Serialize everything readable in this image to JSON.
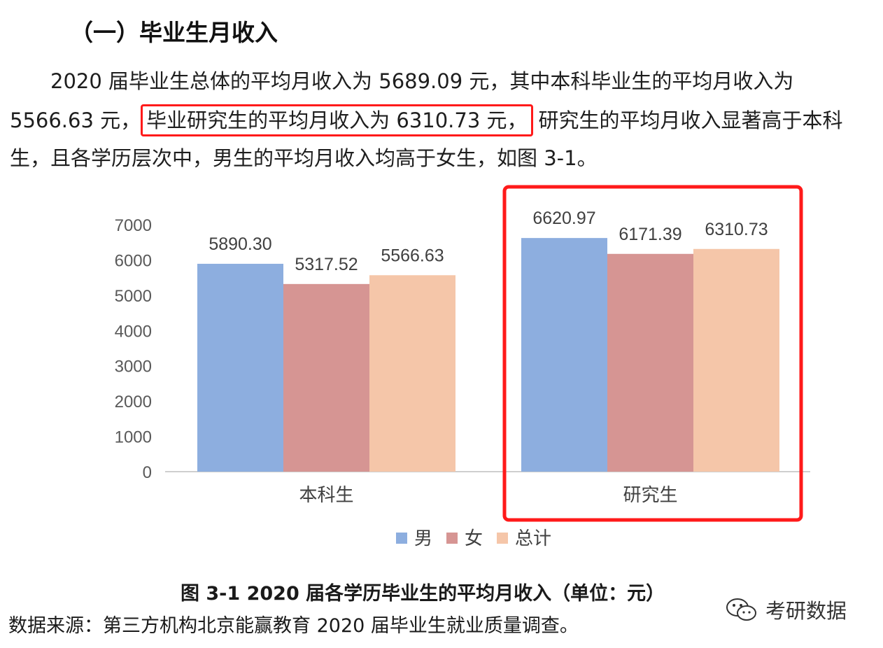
{
  "heading": "（一）毕业生月收入",
  "paragraph": {
    "line1": "2020 届毕业生总体的平均月收入为 5689.09 元，其中本科毕业生的平均月收入为",
    "line2_start": "5566.63 元，",
    "line2_highlight": "毕业研究生的平均月收入为 6310.73 元，",
    "line2_end": "研究生的平均月收入显著高于本科",
    "line3": "生，且各学历层次中，男生的平均月收入均高于女生，如图 3-1。"
  },
  "colors": {
    "male": "#8DAEDF",
    "female": "#D69593",
    "total": "#F5C6A9",
    "highlight": "#FF1A1A",
    "axis": "#BFBFBF"
  },
  "chart_data": {
    "type": "bar",
    "categories": [
      "本科生",
      "研究生"
    ],
    "series": [
      {
        "name": "男",
        "values": [
          5890.3,
          6620.97
        ],
        "color": "#8DAEDF"
      },
      {
        "name": "女",
        "values": [
          5317.52,
          6171.39
        ],
        "color": "#D69593"
      },
      {
        "name": "总计",
        "values": [
          5566.63,
          6310.73
        ],
        "color": "#F5C6A9"
      }
    ],
    "data_labels": [
      [
        "5890.30",
        "5317.52",
        "5566.63"
      ],
      [
        "6620.97",
        "6171.39",
        "6310.73"
      ]
    ],
    "yticks": [
      0,
      1000,
      2000,
      3000,
      4000,
      5000,
      6000,
      7000
    ],
    "ylim": [
      0,
      7000
    ],
    "grid": false,
    "legend": "bottom",
    "highlighted_category": "研究生"
  },
  "caption": "图 3-1    2020 届各学历毕业生的平均月收入（单位：元）",
  "source": "数据来源：第三方机构北京能赢教育 2020 届毕业生就业质量调查。",
  "watermark": {
    "icon": "wechat-icon",
    "text": "考研数据"
  }
}
